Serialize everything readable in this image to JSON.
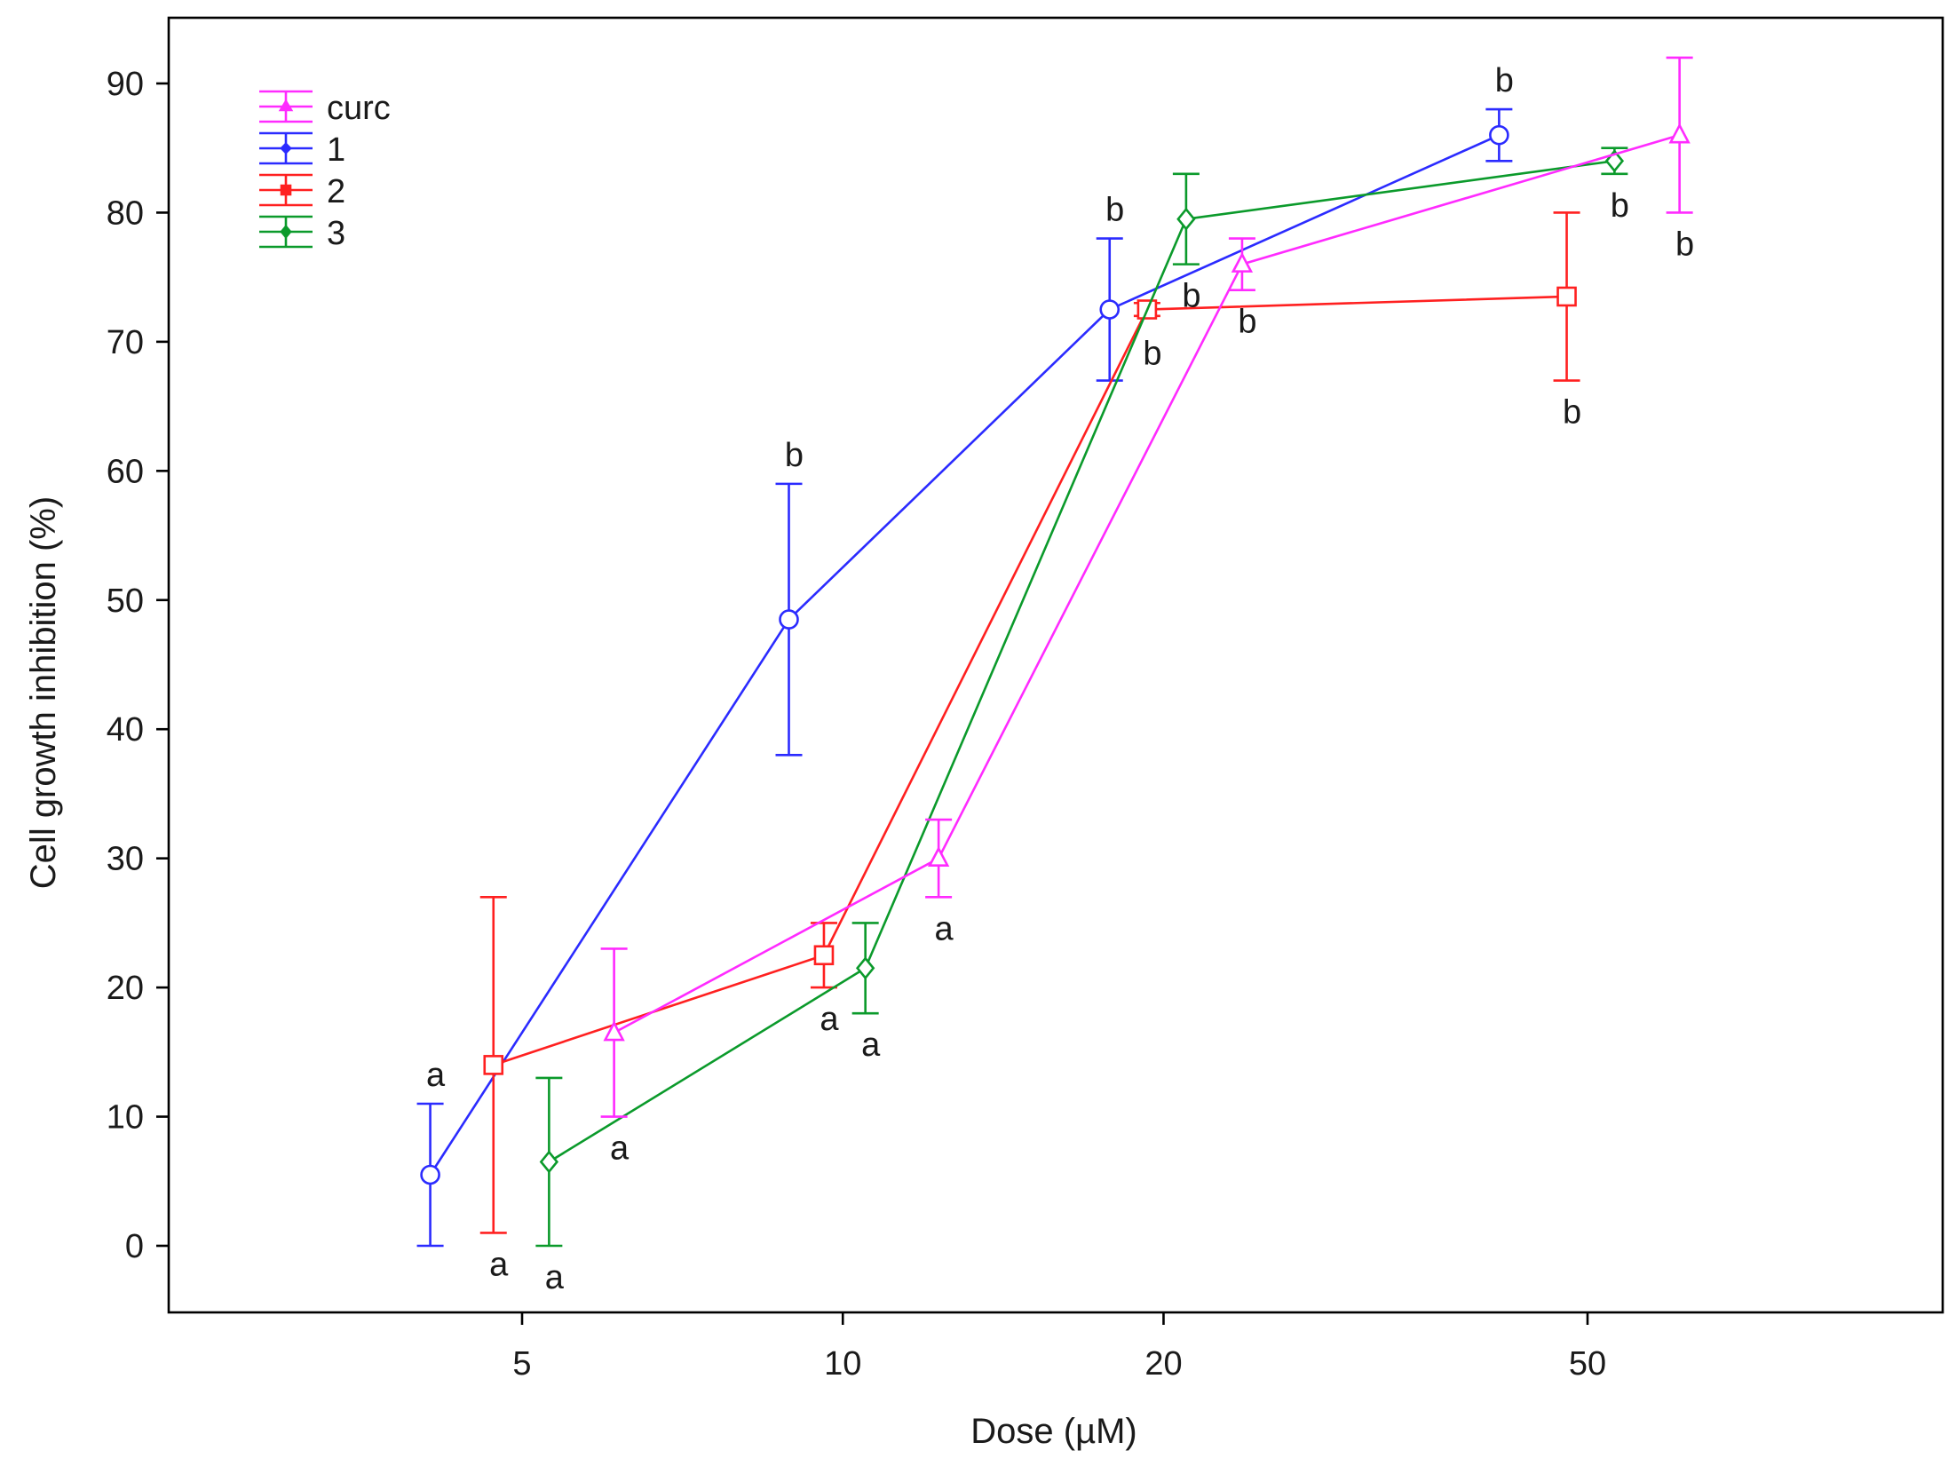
{
  "chart_data": {
    "type": "line",
    "title": "",
    "xlabel": "Dose (µM)",
    "ylabel": "Cell growth inhibition (%)",
    "xscale": "log",
    "xlim": [
      2.0,
      100.0
    ],
    "ylim": [
      -5,
      95
    ],
    "x_ticks": [
      5,
      10,
      20,
      50
    ],
    "x_tick_labels": [
      "5",
      "10",
      "20",
      "50"
    ],
    "y_ticks": [
      0,
      10,
      20,
      30,
      40,
      50,
      60,
      70,
      80,
      90
    ],
    "y_tick_labels": [
      "0",
      "10",
      "20",
      "30",
      "40",
      "50",
      "60",
      "70",
      "80",
      "90"
    ],
    "legend_position": "top-left",
    "note": "Points of each series are horizontally offset around the nominal doses 5, 10, 20 and 50 µM; x values below are the plotted (offset) doses.",
    "series": [
      {
        "name": "curc",
        "color": "#ff2bff",
        "marker": "triangle",
        "x": [
          6.1,
          12.3,
          23.7,
          61.0
        ],
        "y": [
          16.5,
          30.0,
          76.0,
          86.0
        ],
        "err_low": [
          10.0,
          27.0,
          74.0,
          80.0
        ],
        "err_high": [
          23.0,
          33.0,
          78.0,
          92.0
        ],
        "labels": [
          {
            "text": "a",
            "pos": "below"
          },
          {
            "text": "a",
            "pos": "below"
          },
          {
            "text": "b",
            "pos": "below"
          },
          {
            "text": "b",
            "pos": "below"
          }
        ]
      },
      {
        "name": "1",
        "color": "#2b2bff",
        "marker": "circle",
        "x": [
          4.1,
          8.9,
          17.8,
          41.3
        ],
        "y": [
          5.5,
          48.5,
          72.5,
          86.0
        ],
        "err_low": [
          0.0,
          38.0,
          67.0,
          84.0
        ],
        "err_high": [
          11.0,
          59.0,
          78.0,
          88.0
        ],
        "labels": [
          {
            "text": "a",
            "pos": "above"
          },
          {
            "text": "b",
            "pos": "above"
          },
          {
            "text": "b",
            "pos": "above"
          },
          {
            "text": "b",
            "pos": "above"
          }
        ]
      },
      {
        "name": "2",
        "color": "#ff2020",
        "marker": "square",
        "x": [
          4.7,
          9.6,
          19.3,
          47.8
        ],
        "y": [
          14.0,
          22.5,
          72.5,
          73.5
        ],
        "err_low": [
          1.0,
          20.0,
          72.0,
          67.0
        ],
        "err_high": [
          27.0,
          25.0,
          73.0,
          80.0
        ],
        "labels": [
          {
            "text": "a",
            "pos": "below"
          },
          {
            "text": "a",
            "pos": "below"
          },
          {
            "text": "b",
            "pos": "below"
          },
          {
            "text": "b",
            "pos": "below"
          }
        ]
      },
      {
        "name": "3",
        "color": "#0b9a2b",
        "marker": "diamond",
        "x": [
          5.3,
          10.5,
          21.0,
          53.0
        ],
        "y": [
          6.5,
          21.5,
          79.5,
          84.0
        ],
        "err_low": [
          0.0,
          18.0,
          76.0,
          83.0
        ],
        "err_high": [
          13.0,
          25.0,
          83.0,
          85.0
        ],
        "labels": [
          {
            "text": "a",
            "pos": "below"
          },
          {
            "text": "a",
            "pos": "below"
          },
          {
            "text": "b",
            "pos": "below"
          },
          {
            "text": "b",
            "pos": "below"
          }
        ]
      }
    ]
  }
}
